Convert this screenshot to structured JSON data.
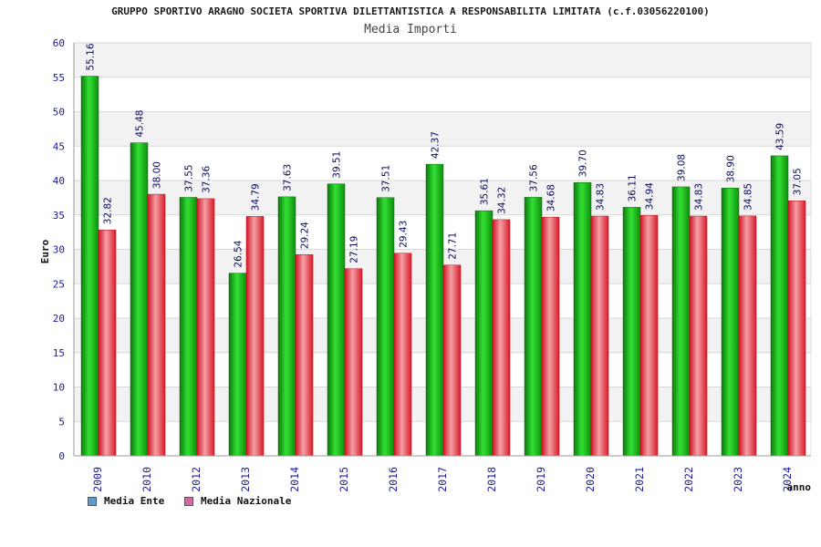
{
  "chart_data": {
    "type": "bar",
    "title": "GRUPPO SPORTIVO ARAGNO SOCIETA SPORTIVA DILETTANTISTICA A RESPONSABILITA LIMITATA (c.f.03056220100)",
    "subtitle": "Media Importi",
    "xlabel": "anno",
    "ylabel": "Euro",
    "ylim": [
      0,
      60
    ],
    "ytick_step": 5,
    "grid": true,
    "legend_position": "bottom-left",
    "categories": [
      "2009",
      "2010",
      "2012",
      "2013",
      "2014",
      "2015",
      "2016",
      "2017",
      "2018",
      "2019",
      "2020",
      "2021",
      "2022",
      "2023",
      "2024"
    ],
    "series": [
      {
        "name": "Media Ente",
        "legend_color": "#5b9bd5",
        "bar_color": "#16b316",
        "values": [
          55.16,
          45.48,
          37.55,
          26.54,
          37.63,
          39.51,
          37.51,
          42.37,
          35.61,
          37.56,
          39.7,
          36.11,
          39.08,
          38.9,
          43.59
        ],
        "labels": [
          "55.16",
          "45.48",
          "37.55",
          "26.54",
          "37.63",
          "39.51",
          "37.51",
          "42.37",
          "35.61",
          "37.56",
          "39.70",
          "36.11",
          "39.08",
          "38.90",
          "43.59"
        ]
      },
      {
        "name": "Media Nazionale",
        "legend_color": "#d16ba5",
        "bar_color": "#e8303d",
        "values": [
          32.82,
          38.0,
          37.36,
          34.79,
          29.24,
          27.19,
          29.43,
          27.71,
          34.32,
          34.68,
          34.83,
          34.94,
          34.83,
          34.85,
          37.05
        ],
        "labels": [
          "32.82",
          "38.00",
          "37.36",
          "34.79",
          "29.24",
          "27.19",
          "29.43",
          "27.71",
          "34.32",
          "34.68",
          "34.83",
          "34.94",
          "34.83",
          "34.85",
          "37.05"
        ]
      }
    ]
  }
}
